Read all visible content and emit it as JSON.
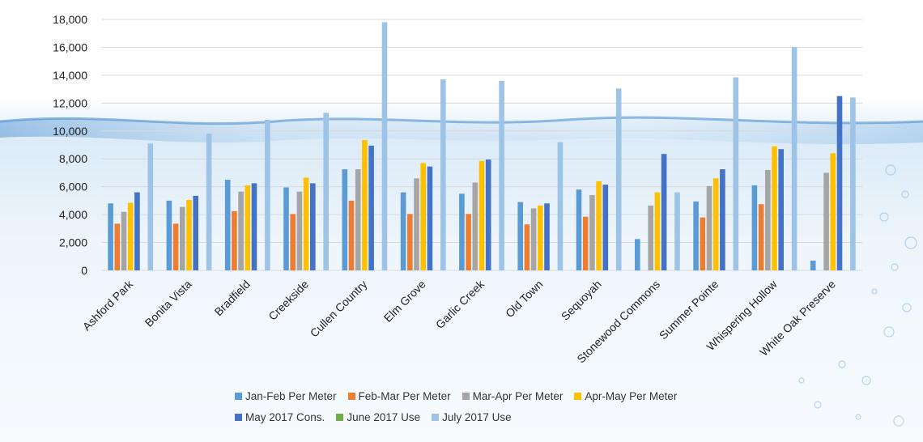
{
  "chart_data": {
    "type": "bar",
    "title": "",
    "xlabel": "",
    "ylabel": "",
    "ylim": [
      0,
      18000
    ],
    "y_ticks": [
      "0",
      "2,000",
      "4,000",
      "6,000",
      "8,000",
      "10,000",
      "12,000",
      "14,000",
      "16,000",
      "18,000"
    ],
    "grid": true,
    "legend_position": "bottom",
    "categories": [
      "Ashford Park",
      "Bonita Vista",
      "Bradfield",
      "Creekside",
      "Cullen Country",
      "Elm Grove",
      "Garlic Creek",
      "Old Town",
      "Sequoyah",
      "Stonewood Commons",
      "Summer Pointe",
      "Whispering Hollow",
      "White Oak Preserve"
    ],
    "series": [
      {
        "name": "Jan-Feb Per Meter",
        "color": "#5b9bd5",
        "values": [
          4800,
          5000,
          6500,
          5950,
          7250,
          5600,
          5500,
          4900,
          5800,
          2250,
          4950,
          6100,
          700
        ]
      },
      {
        "name": "Feb-Mar Per Meter",
        "color": "#ed7d31",
        "values": [
          3350,
          3350,
          4250,
          4050,
          5000,
          4050,
          4050,
          3300,
          3850,
          0,
          3800,
          4750,
          0
        ]
      },
      {
        "name": "Mar-Apr Per Meter",
        "color": "#a5a5a5",
        "values": [
          4200,
          4550,
          5650,
          5650,
          7250,
          6600,
          6300,
          4450,
          5400,
          4650,
          6050,
          7200,
          7000
        ]
      },
      {
        "name": "Apr-May Per Meter",
        "color": "#ffc000",
        "values": [
          4850,
          5050,
          6100,
          6650,
          9350,
          7700,
          7850,
          4650,
          6400,
          5600,
          6600,
          8900,
          8400
        ]
      },
      {
        "name": "May 2017 Cons.",
        "color": "#4472c4",
        "values": [
          5600,
          5350,
          6250,
          6250,
          8950,
          7450,
          7950,
          4800,
          6150,
          8350,
          7250,
          8700,
          12500
        ]
      },
      {
        "name": "June 2017 Use",
        "color": "#70ad47",
        "values": [
          0,
          0,
          0,
          0,
          0,
          0,
          0,
          0,
          0,
          0,
          0,
          0,
          0
        ]
      },
      {
        "name": "July 2017 Use",
        "color": "#9dc3e6",
        "values": [
          9100,
          9800,
          10800,
          11300,
          17800,
          13700,
          13600,
          9200,
          13050,
          5600,
          13850,
          16000,
          12400
        ]
      }
    ]
  }
}
